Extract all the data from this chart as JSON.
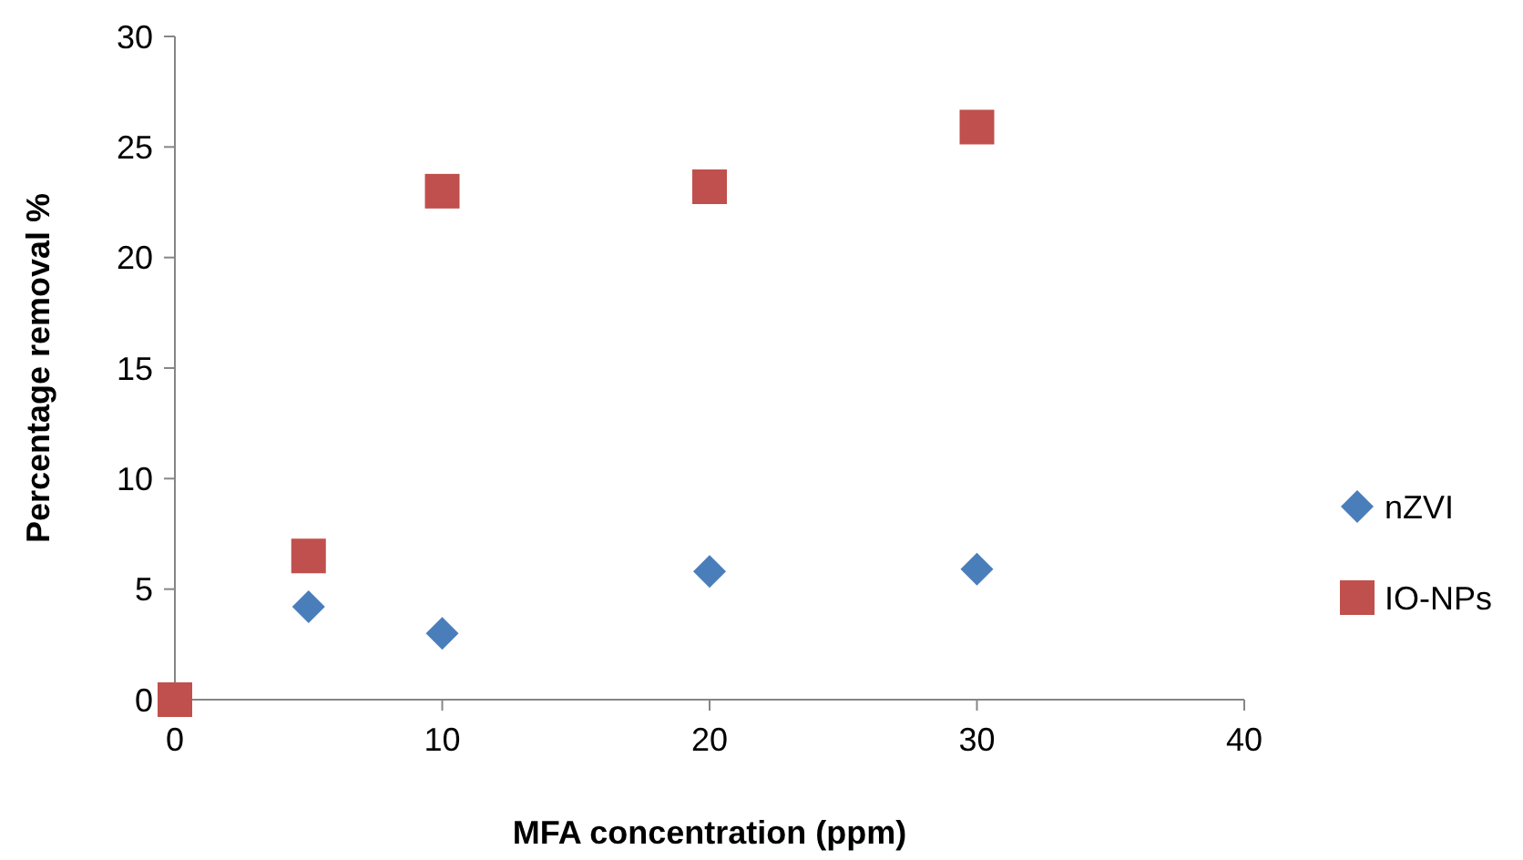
{
  "chart_data": {
    "type": "scatter",
    "xlabel": "MFA concentration (ppm)",
    "ylabel": "Percentage removal %",
    "x": [
      0,
      5,
      10,
      20,
      30
    ],
    "series": [
      {
        "name": "nZVI",
        "color": "#4a7ebb",
        "marker": "diamond",
        "values": [
          null,
          4.2,
          3.0,
          5.8,
          5.9
        ]
      },
      {
        "name": "IO-NPs",
        "color": "#c0504d",
        "marker": "square",
        "values": [
          0,
          6.5,
          23.0,
          23.2,
          25.9
        ]
      }
    ],
    "xlim": [
      0,
      40
    ],
    "xticks": [
      0,
      10,
      20,
      30,
      40
    ],
    "ylim": [
      0,
      30
    ],
    "yticks": [
      0,
      5,
      10,
      15,
      20,
      25,
      30
    ],
    "grid": false,
    "legend": "right"
  }
}
